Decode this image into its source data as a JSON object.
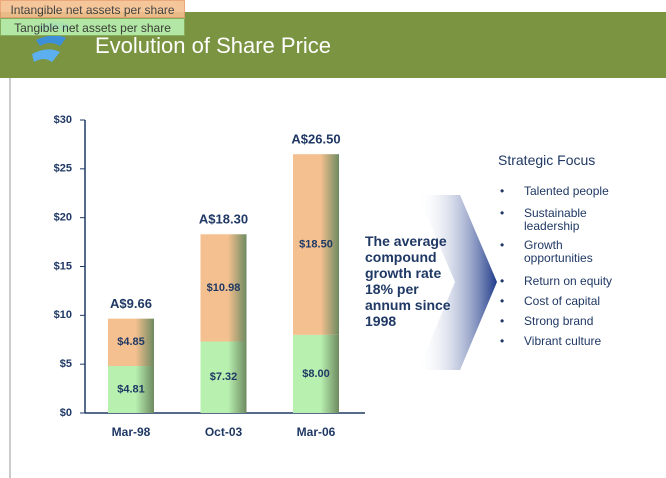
{
  "header": {
    "title": "Evolution of Share Price"
  },
  "chart_data": {
    "type": "stacked_bar",
    "categories": [
      "Mar-98",
      "Oct-03",
      "Mar-06"
    ],
    "series": [
      {
        "name": "Tangible net assets per share",
        "color": "#b8f0b0",
        "values": [
          4.81,
          7.32,
          8.0
        ],
        "value_labels": [
          "$4.81",
          "$7.32",
          "$8.00"
        ]
      },
      {
        "name": "Intangible net assets per share",
        "color": "#f4c090",
        "values": [
          4.85,
          10.98,
          18.5
        ],
        "value_labels": [
          "$4.85",
          "$10.98",
          "$18.50"
        ]
      }
    ],
    "totals": [
      9.66,
      18.3,
      26.5
    ],
    "total_labels": [
      "A$9.66",
      "A$18.30",
      "A$26.50"
    ],
    "ylim": [
      0,
      30
    ],
    "yticks": [
      {
        "value": 0,
        "label": "$0"
      },
      {
        "value": 5,
        "label": "$5"
      },
      {
        "value": 10,
        "label": "$10"
      },
      {
        "value": 15,
        "label": "$15"
      },
      {
        "value": 20,
        "label": "$20"
      },
      {
        "value": 25,
        "label": "$25"
      },
      {
        "value": 30,
        "label": "$30"
      }
    ],
    "callout": [
      "The average",
      "compound",
      "growth rate",
      "18% per",
      "annum since",
      "1998"
    ]
  },
  "strategic_focus": {
    "title": "Strategic Focus",
    "items": [
      "Talented people",
      "Sustainable leadership",
      "Growth opportunities",
      "Return on equity",
      "Cost of capital",
      "Strong brand",
      "Vibrant culture"
    ]
  }
}
